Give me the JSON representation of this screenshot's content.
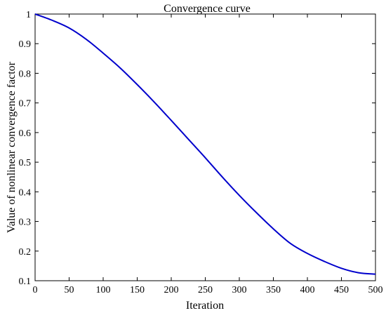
{
  "chart_data": {
    "type": "line",
    "title": "Convergence curve",
    "xlabel": "Iteration",
    "ylabel": "Value of nonlinear convergence factor",
    "xlim": [
      0,
      500
    ],
    "ylim": [
      0.1,
      1
    ],
    "xticks": [
      0,
      50,
      100,
      150,
      200,
      250,
      300,
      350,
      400,
      450,
      500
    ],
    "yticks": [
      0.1,
      0.2,
      0.3,
      0.4,
      0.5,
      0.6,
      0.7,
      0.8,
      0.9,
      1
    ],
    "ytick_labels": [
      "0.1",
      "0.2",
      "0.3",
      "0.4",
      "0.5",
      "0.6",
      "0.7",
      "0.8",
      "0.9",
      "1"
    ],
    "grid": false,
    "series": [
      {
        "color": "#0000cc",
        "x": [
          0,
          25,
          50,
          75,
          100,
          125,
          150,
          175,
          200,
          225,
          250,
          275,
          300,
          325,
          350,
          375,
          400,
          425,
          450,
          475,
          500
        ],
        "y": [
          1.0,
          0.979,
          0.953,
          0.915,
          0.868,
          0.818,
          0.762,
          0.703,
          0.641,
          0.578,
          0.515,
          0.45,
          0.388,
          0.33,
          0.275,
          0.226,
          0.192,
          0.165,
          0.142,
          0.127,
          0.122
        ]
      }
    ]
  }
}
